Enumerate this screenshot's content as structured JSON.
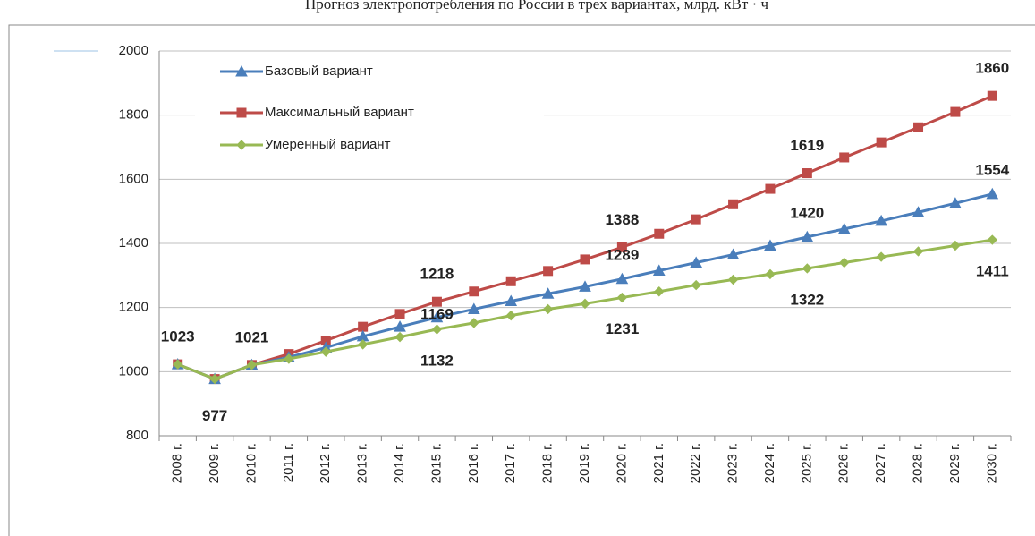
{
  "chart_data": {
    "type": "line",
    "title": "Прогноз электропотребления по России в трех вариантах, млрд. кВт · ч",
    "categories": [
      "2008 г.",
      "2009 г.",
      "2010 г.",
      "2011 г.",
      "2012 г.",
      "2013 г.",
      "2014 г.",
      "2015 г.",
      "2016 г.",
      "2017 г.",
      "2018 г.",
      "2019 г.",
      "2020 г.",
      "2021 г.",
      "2022 г.",
      "2023 г.",
      "2024 г.",
      "2025 г.",
      "2026 г.",
      "2027 г.",
      "2028 г.",
      "2029 г.",
      "2030 г."
    ],
    "series": [
      {
        "name": "Базовый вариант",
        "color": "#4a7ebb",
        "marker": "triangle",
        "values": [
          1023,
          977,
          1021,
          1045,
          1075,
          1110,
          1140,
          1169,
          1195,
          1220,
          1243,
          1265,
          1289,
          1315,
          1340,
          1365,
          1393,
          1420,
          1445,
          1470,
          1497,
          1525,
          1554
        ],
        "value_labels": [
          null,
          null,
          null,
          null,
          null,
          null,
          null,
          "1169",
          null,
          null,
          null,
          null,
          "1289",
          null,
          null,
          null,
          null,
          "1420",
          null,
          null,
          null,
          null,
          "1554"
        ]
      },
      {
        "name": "Максимальный вариант",
        "color": "#be4b48",
        "marker": "square",
        "values": [
          1023,
          977,
          1021,
          1055,
          1097,
          1140,
          1180,
          1218,
          1250,
          1282,
          1314,
          1350,
          1388,
          1430,
          1475,
          1522,
          1570,
          1619,
          1668,
          1715,
          1762,
          1810,
          1860
        ],
        "value_labels": [
          "1023",
          "977",
          "1021",
          null,
          null,
          null,
          null,
          "1218",
          null,
          null,
          null,
          null,
          "1388",
          null,
          null,
          null,
          null,
          "1619",
          null,
          null,
          null,
          null,
          "1860"
        ]
      },
      {
        "name": "Умеренный вариант",
        "color": "#98b954",
        "marker": "diamond",
        "values": [
          1023,
          977,
          1021,
          1040,
          1062,
          1085,
          1108,
          1132,
          1152,
          1175,
          1195,
          1212,
          1231,
          1250,
          1270,
          1287,
          1304,
          1322,
          1340,
          1358,
          1375,
          1393,
          1411
        ],
        "value_labels": [
          null,
          null,
          null,
          null,
          null,
          null,
          null,
          "1132",
          null,
          null,
          null,
          null,
          "1231",
          null,
          null,
          null,
          null,
          "1322",
          null,
          null,
          null,
          null,
          "1411"
        ]
      }
    ],
    "ylim": [
      800,
      2000
    ],
    "yticks": [
      800,
      1000,
      1200,
      1400,
      1600,
      1800,
      2000
    ],
    "grid": true,
    "legend": "top-left"
  }
}
